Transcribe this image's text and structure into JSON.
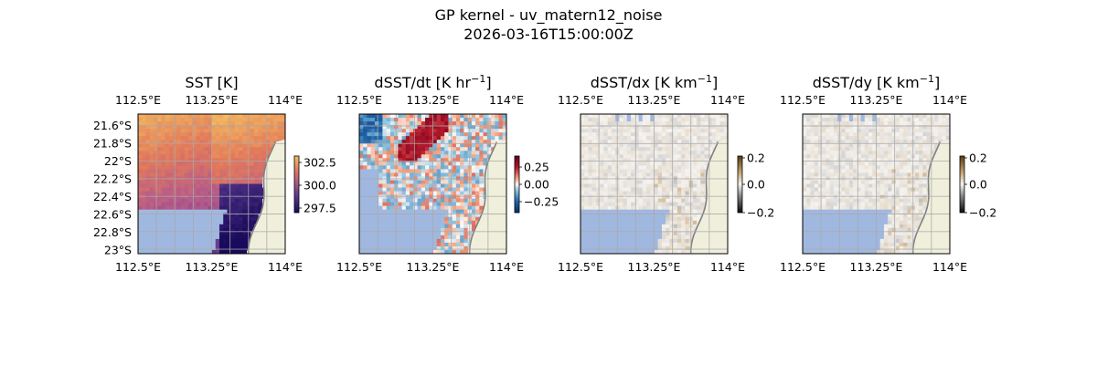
{
  "figure": {
    "title_line1": "GP kernel - uv_matern12_noise",
    "title_line2": "2026-03-16T15:00:00Z"
  },
  "colors": {
    "land": "#efefdc",
    "masked": "#a0b8e0",
    "coast": "#808080",
    "grid": "#a9a9a9"
  },
  "chart_data": [
    {
      "type": "heatmap",
      "title": "SST [K]",
      "title_main": "SST [K]",
      "title_sup": "",
      "title_end": "",
      "xticks": [
        "112.5°E",
        "113.25°E",
        "114°E"
      ],
      "yticks": [
        "21.6°S",
        "21.8°S",
        "22°S",
        "22.2°S",
        "22.4°S",
        "22.6°S",
        "22.8°S",
        "23°S"
      ],
      "colorbar_ticks": [
        "302.5",
        "300.0",
        "297.5"
      ],
      "colorbar_range": [
        297,
        303
      ],
      "colormap": "plasma-like",
      "value_range_estimate": [
        297.5,
        302.5
      ]
    },
    {
      "type": "heatmap",
      "title": "dSST/dt [K hr−1]",
      "title_main": "dSST/dt [K hr",
      "title_sup": "−1",
      "title_end": "]",
      "xticks": [
        "112.5°E",
        "113.25°E",
        "114°E"
      ],
      "colorbar_ticks": [
        "0.25",
        "0.00",
        "−0.25"
      ],
      "colorbar_range": [
        -0.4,
        0.4
      ],
      "colormap": "RdBu_r"
    },
    {
      "type": "heatmap",
      "title": "dSST/dx [K km−1]",
      "title_main": "dSST/dx [K km",
      "title_sup": "−1",
      "title_end": "]",
      "xticks": [
        "112.5°E",
        "113.25°E",
        "114°E"
      ],
      "colorbar_ticks": [
        "0.2",
        "0.0",
        "−0.2"
      ],
      "colorbar_range": [
        -0.2,
        0.2
      ],
      "colormap": "gray-brown diverging"
    },
    {
      "type": "heatmap",
      "title": "dSST/dy [K km−1]",
      "title_main": "dSST/dy [K km",
      "title_sup": "−1",
      "title_end": "]",
      "xticks": [
        "112.5°E",
        "113.25°E",
        "114°E"
      ],
      "colorbar_ticks": [
        "0.2",
        "0.0",
        "−0.2"
      ],
      "colorbar_range": [
        -0.2,
        0.2
      ],
      "colormap": "gray-brown diverging"
    }
  ]
}
